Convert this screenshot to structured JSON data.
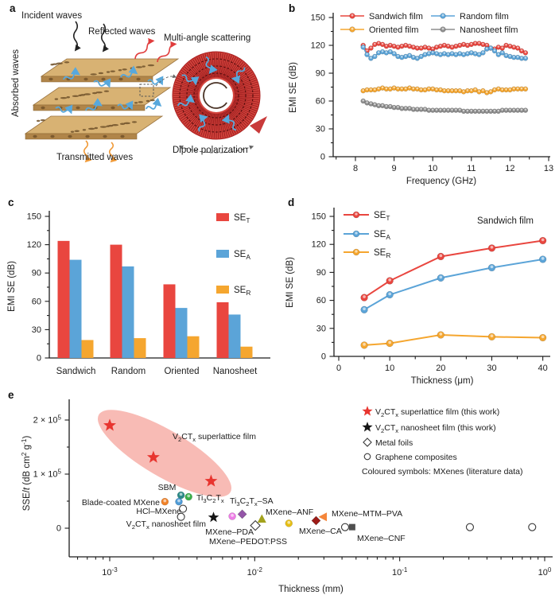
{
  "panels": {
    "a": {
      "letter": "a",
      "labels": {
        "incident": "Incident waves",
        "reflected": "Reflected waves",
        "absorbed": "Absorbed waves",
        "transmitted": "Transmitted waves",
        "multi_angle": "Multi-angle scattering",
        "dipole": "Dipole polarization"
      }
    },
    "b": {
      "letter": "b"
    },
    "c": {
      "letter": "c"
    },
    "d": {
      "letter": "d"
    },
    "e": {
      "letter": "e"
    }
  },
  "colors": {
    "red": "#e9463f",
    "blue": "#5ba4d8",
    "orange": "#f5a62f",
    "gray": "#8d8d8d",
    "axis": "#1c1c1c",
    "ellipse": "#f6aaa2"
  },
  "chart_data": [
    {
      "id": "b",
      "type": "line",
      "xlabel": "Frequency (GHz)",
      "ylabel": "EMI SE (dB)",
      "xticks": [
        8,
        9,
        10,
        11,
        12,
        13
      ],
      "yticks": [
        0,
        30,
        60,
        90,
        120,
        150
      ],
      "xlim": [
        7.4,
        13.1
      ],
      "ylim": [
        0,
        155
      ],
      "x_start": 8.2,
      "x_step": 0.1,
      "legend_rows": [
        [
          0,
          1
        ],
        [
          2,
          3
        ]
      ],
      "series": [
        {
          "name": "Sandwich film",
          "color": "red",
          "values": [
            120,
            114,
            117,
            121,
            122,
            121,
            119,
            120,
            119,
            118,
            119,
            120,
            119,
            118,
            117,
            117,
            118,
            117,
            116,
            118,
            119,
            120,
            119,
            118,
            119,
            120,
            121,
            120,
            121,
            122,
            122,
            121,
            120,
            117,
            116,
            118,
            117,
            120,
            119,
            118,
            117,
            114,
            112
          ]
        },
        {
          "name": "Random film",
          "color": "blue",
          "values": [
            118,
            110,
            106,
            108,
            112,
            113,
            112,
            113,
            111,
            108,
            107,
            108,
            109,
            107,
            106,
            108,
            110,
            111,
            112,
            111,
            110,
            111,
            110,
            111,
            110,
            111,
            110,
            111,
            112,
            111,
            110,
            112,
            116,
            117,
            114,
            110,
            112,
            109,
            108,
            107,
            107,
            106,
            106
          ]
        },
        {
          "name": "Oriented film",
          "color": "orange",
          "values": [
            71,
            72,
            72,
            72,
            73,
            74,
            73,
            73,
            74,
            73,
            73,
            73,
            74,
            73,
            73,
            72,
            72,
            73,
            73,
            72,
            72,
            71,
            71,
            71,
            71,
            71,
            70,
            71,
            71,
            72,
            70,
            71,
            69,
            70,
            72,
            73,
            72,
            72,
            72,
            73,
            73,
            73,
            73
          ]
        },
        {
          "name": "Nanosheet film",
          "color": "gray",
          "values": [
            60,
            58,
            57,
            56,
            55,
            55,
            54,
            54,
            53,
            53,
            52,
            52,
            52,
            51,
            51,
            51,
            51,
            50,
            50,
            50,
            50,
            50,
            50,
            50,
            50,
            50,
            49,
            49,
            49,
            49,
            49,
            49,
            49,
            49,
            49,
            49,
            50,
            50,
            50,
            50,
            50,
            50,
            50
          ]
        }
      ]
    },
    {
      "id": "c",
      "type": "bar",
      "ylabel": "EMI SE (dB)",
      "yticks": [
        0,
        30,
        60,
        90,
        120,
        150
      ],
      "ylim": [
        0,
        155
      ],
      "categories": [
        "Sandwich",
        "Random",
        "Oriented",
        "Nanosheet"
      ],
      "series": [
        {
          "name": "SE~T~",
          "color": "red",
          "values": [
            124,
            120,
            78,
            59
          ]
        },
        {
          "name": "SE~A~",
          "color": "blue",
          "values": [
            104,
            97,
            53,
            46
          ]
        },
        {
          "name": "SE~R~",
          "color": "orange",
          "values": [
            19,
            21,
            23,
            12
          ]
        }
      ]
    },
    {
      "id": "d",
      "type": "line",
      "xlabel": "Thickness (μm)",
      "ylabel": "EMI SE (dB)",
      "annotation": "Sandwich film",
      "xticks": [
        0,
        10,
        20,
        30,
        40
      ],
      "yticks": [
        0,
        30,
        60,
        90,
        120,
        150
      ],
      "xlim": [
        0,
        42
      ],
      "ylim": [
        0,
        155
      ],
      "x": [
        5,
        10,
        20,
        30,
        40
      ],
      "series": [
        {
          "name": "SE~T~",
          "color": "red",
          "values": [
            63,
            81,
            107,
            116,
            124
          ]
        },
        {
          "name": "SE~A~",
          "color": "blue",
          "values": [
            50,
            66,
            84,
            95,
            104
          ]
        },
        {
          "name": "SE~R~",
          "color": "orange",
          "values": [
            12,
            14,
            23,
            21,
            20
          ]
        }
      ]
    },
    {
      "id": "e",
      "type": "scatter",
      "xlabel": "Thickness (mm)",
      "ylabel": "SSE/%t% (dB cm^2^ g^-1^)",
      "xscale": "log",
      "xticks": [
        {
          "v": 0.001,
          "label": "10^-3^"
        },
        {
          "v": 0.01,
          "label": "10^-2^"
        },
        {
          "v": 0.1,
          "label": "10^-1^"
        },
        {
          "v": 1,
          "label": "10^0^"
        }
      ],
      "yticks": [
        {
          "v": 0,
          "label": "0"
        },
        {
          "v": 100000,
          "label": "1 × 10^5^"
        },
        {
          "v": 200000,
          "label": "2 × 10^5^"
        }
      ],
      "xlim": [
        0.00053,
        1.13
      ],
      "ylim": [
        -50000,
        240000
      ],
      "highlight_ellipse": {
        "cx": 207,
        "cy": 80,
        "rx": 96,
        "ry": 29,
        "rotate": 30.5,
        "color": "#f6aaa2"
      },
      "points": [
        {
          "name": "V~2~CT~x~ superlattice film",
          "marker": "star",
          "color": "#e8352f",
          "x": 0.001,
          "y": 190000
        },
        {
          "name": "V~2~CT~x~ superlattice film",
          "marker": "star",
          "color": "#e8352f",
          "x": 0.002,
          "y": 131000
        },
        {
          "name": "V~2~CT~x~ superlattice film",
          "marker": "star",
          "color": "#e8352f",
          "x": 0.005,
          "y": 87000
        },
        {
          "name": "V~2~CT~x~ nanosheet film",
          "marker": "star",
          "color": "#151515",
          "x": 0.0052,
          "y": 20000
        },
        {
          "name": "SBM",
          "marker": "circle",
          "color": "#2b8a87",
          "x": 0.0031,
          "y": 61000
        },
        {
          "name": "SBM",
          "marker": "circle",
          "color": "#4f9bd6",
          "x": 0.003,
          "y": 49000
        },
        {
          "name": "Ti~3~C~2~T~x~",
          "marker": "circle",
          "color": "#3bae49",
          "x": 0.0035,
          "y": 58000
        },
        {
          "name": "Blade-coated MXene",
          "marker": "circle",
          "color": "#f08229",
          "x": 0.0024,
          "y": 49000
        },
        {
          "name": "HCl–MXene",
          "marker": "circle-open",
          "color": "#3a3a3a",
          "x": 0.0032,
          "y": 36000
        },
        {
          "name": "HCl–MXene",
          "marker": "circle-open",
          "color": "#3a3a3a",
          "x": 0.0031,
          "y": 21000
        },
        {
          "name": "Ti~3~C~2~T~x~–SA",
          "marker": "circle",
          "color": "#ee7ce6",
          "x": 0.007,
          "y": 22000
        },
        {
          "name": "MXene–PDA",
          "marker": "diamond",
          "color": "#9455a8",
          "x": 0.0082,
          "y": 26000
        },
        {
          "name": "Metal foils",
          "marker": "diamond-open",
          "color": "#3a3a3a",
          "x": 0.0101,
          "y": 5000
        },
        {
          "name": "MXene–ANF",
          "marker": "triangle",
          "color": "#a3a21c",
          "x": 0.0112,
          "y": 17000
        },
        {
          "name": "MXene–PEDOT:PSS",
          "marker": "circle",
          "color": "#e6be14",
          "x": 0.0172,
          "y": 9000
        },
        {
          "name": "MXene–CA",
          "marker": "diamond",
          "color": "#9e1b17",
          "x": 0.0265,
          "y": 14000
        },
        {
          "name": "MXene–MTM–PVA",
          "marker": "triangle-left",
          "color": "#f5863a",
          "x": 0.0297,
          "y": 21000
        },
        {
          "name": "Graphene composites",
          "marker": "circle-open",
          "color": "#3a3a3a",
          "x": 0.042,
          "y": 2000
        },
        {
          "name": "MXene–CNF",
          "marker": "square",
          "color": "#4f4f4f",
          "x": 0.047,
          "y": 2000
        },
        {
          "name": "Graphene composites",
          "marker": "circle-open",
          "color": "#3a3a3a",
          "x": 0.305,
          "y": 2000
        },
        {
          "name": "Graphene composites",
          "marker": "circle-open",
          "color": "#3a3a3a",
          "x": 0.82,
          "y": 2000
        }
      ],
      "annotations": [
        {
          "text": "V~2~CT~x~ superlattice film",
          "x": 217,
          "y": 62,
          "anchor": "start"
        },
        {
          "text": "SBM",
          "x": 210,
          "y": 126,
          "anchor": "middle"
        },
        {
          "text": "Blade-coated MXene",
          "x": 201,
          "y": 145,
          "anchor": "end"
        },
        {
          "text": "Ti~3~C~2~T~x~",
          "x": 247,
          "y": 139,
          "anchor": "start"
        },
        {
          "text": "HCl–MXene",
          "x": 228,
          "y": 156,
          "anchor": "end"
        },
        {
          "text": "V~2~CT~x~ nanosheet film",
          "x": 259,
          "y": 172,
          "anchor": "end"
        },
        {
          "text": "Ti~3~C~2~T~x~–SA",
          "x": 289,
          "y": 143,
          "anchor": "start"
        },
        {
          "text": "MXene–ANF",
          "x": 334,
          "y": 157,
          "anchor": "start"
        },
        {
          "text": "MXene–MTM–PVA",
          "x": 417,
          "y": 159,
          "anchor": "start"
        },
        {
          "text": "MXene–PDA",
          "x": 319,
          "y": 182,
          "anchor": "end"
        },
        {
          "text": "MXene–PEDOT:PSS",
          "x": 263,
          "y": 194,
          "anchor": "start"
        },
        {
          "text": "MXene–CA",
          "x": 376,
          "y": 181,
          "anchor": "start"
        },
        {
          "text": "MXene–CNF",
          "x": 449,
          "y": 190,
          "anchor": "start"
        }
      ],
      "legend": [
        {
          "marker": "star",
          "color": "#e8352f",
          "label": "V~2~CT~x~ superlattice film (this work)"
        },
        {
          "marker": "star",
          "color": "#151515",
          "label": "V~2~CT~x~ nanosheet film (this work)"
        },
        {
          "marker": "diamond-open",
          "color": "#3a3a3a",
          "label": "Metal foils"
        },
        {
          "marker": "circle-open",
          "color": "#3a3a3a",
          "label": "Graphene composites"
        },
        {
          "marker": "none",
          "color": "",
          "label": "Coloured symbols: MXenes (literature data)"
        }
      ]
    }
  ]
}
